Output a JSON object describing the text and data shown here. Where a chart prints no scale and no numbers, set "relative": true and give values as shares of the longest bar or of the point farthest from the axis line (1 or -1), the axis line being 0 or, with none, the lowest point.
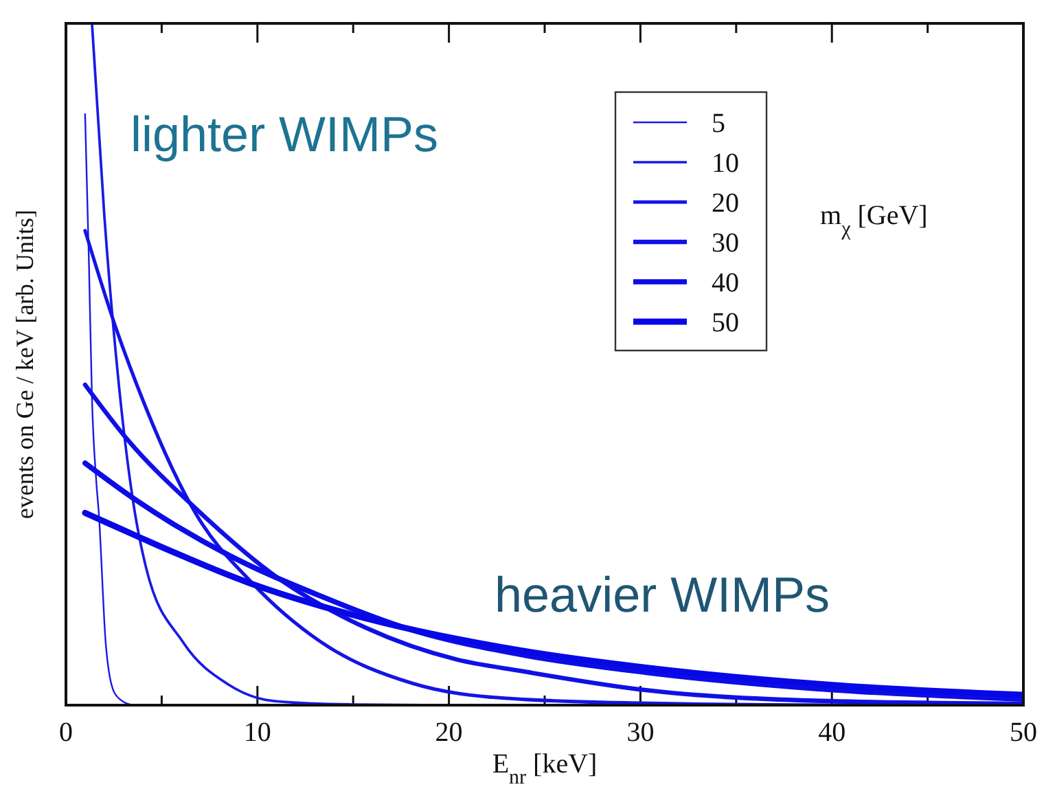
{
  "chart_data": {
    "type": "line",
    "relative": true,
    "xlabel": "E$_{nr}$ [keV]",
    "ylabel": "events on Ge / keV [arb. Units]",
    "legend_title": "m$_{χ}$ [GeV]",
    "legend": "top right",
    "grid": false,
    "xlim": [
      0,
      50
    ],
    "xticks": [
      0,
      {
        "value": 5,
        "label": null
      },
      10,
      {
        "value": 15,
        "label": null
      },
      20,
      {
        "value": 25,
        "label": null
      },
      30,
      {
        "value": 35,
        "label": null
      },
      40,
      {
        "value": 45,
        "label": null
      },
      50
    ],
    "annotations": [
      "lighter WIMPs",
      "heavier WIMPs"
    ],
    "series": [
      {
        "name": "5",
        "color": "#1a1ae6",
        "x": [
          1,
          1.2,
          1.36,
          1.58,
          1.72,
          2.08,
          2.5,
          3,
          3.5
        ],
        "values": [
          0.867,
          0.65,
          0.45,
          0.33,
          0.28,
          0.09,
          0.02,
          0.005,
          0
        ]
      },
      {
        "name": "10",
        "color": "#1a1ae6",
        "x": [
          1.36,
          2,
          2.8,
          3.5,
          4.2,
          6.1,
          8.5,
          10.9,
          15,
          20,
          50
        ],
        "values": [
          1,
          0.72,
          0.46,
          0.3,
          0.2,
          0.093,
          0.03,
          0.006,
          0.001,
          0,
          0
        ]
      },
      {
        "name": "20",
        "color": "#1414e6",
        "x": [
          1,
          2.65,
          3.7,
          6.8,
          9.7,
          13.3,
          18.1,
          23,
          30,
          40,
          50
        ],
        "values": [
          0.696,
          0.55,
          0.47,
          0.28,
          0.18,
          0.093,
          0.032,
          0.01,
          0.003,
          0,
          0
        ]
      },
      {
        "name": "30",
        "color": "#1010e6",
        "x": [
          1,
          3.2,
          6.8,
          10.9,
          15.7,
          20.4,
          23.8,
          30.3,
          39.8,
          50
        ],
        "values": [
          0.47,
          0.39,
          0.288,
          0.19,
          0.113,
          0.067,
          0.05,
          0.022,
          0.006,
          0.002
        ]
      },
      {
        "name": "40",
        "color": "#0c0ce6",
        "x": [
          1,
          3.7,
          8.5,
          13.3,
          18.1,
          23.8,
          30.3,
          39.8,
          50
        ],
        "values": [
          0.355,
          0.3,
          0.22,
          0.16,
          0.11,
          0.074,
          0.048,
          0.023,
          0.009
        ]
      },
      {
        "name": "50",
        "color": "#0808e6",
        "x": [
          1,
          3.7,
          9.5,
          15.7,
          23.8,
          30.3,
          39.8,
          50
        ],
        "values": [
          0.282,
          0.248,
          0.18,
          0.127,
          0.08,
          0.055,
          0.03,
          0.015
        ]
      }
    ]
  }
}
